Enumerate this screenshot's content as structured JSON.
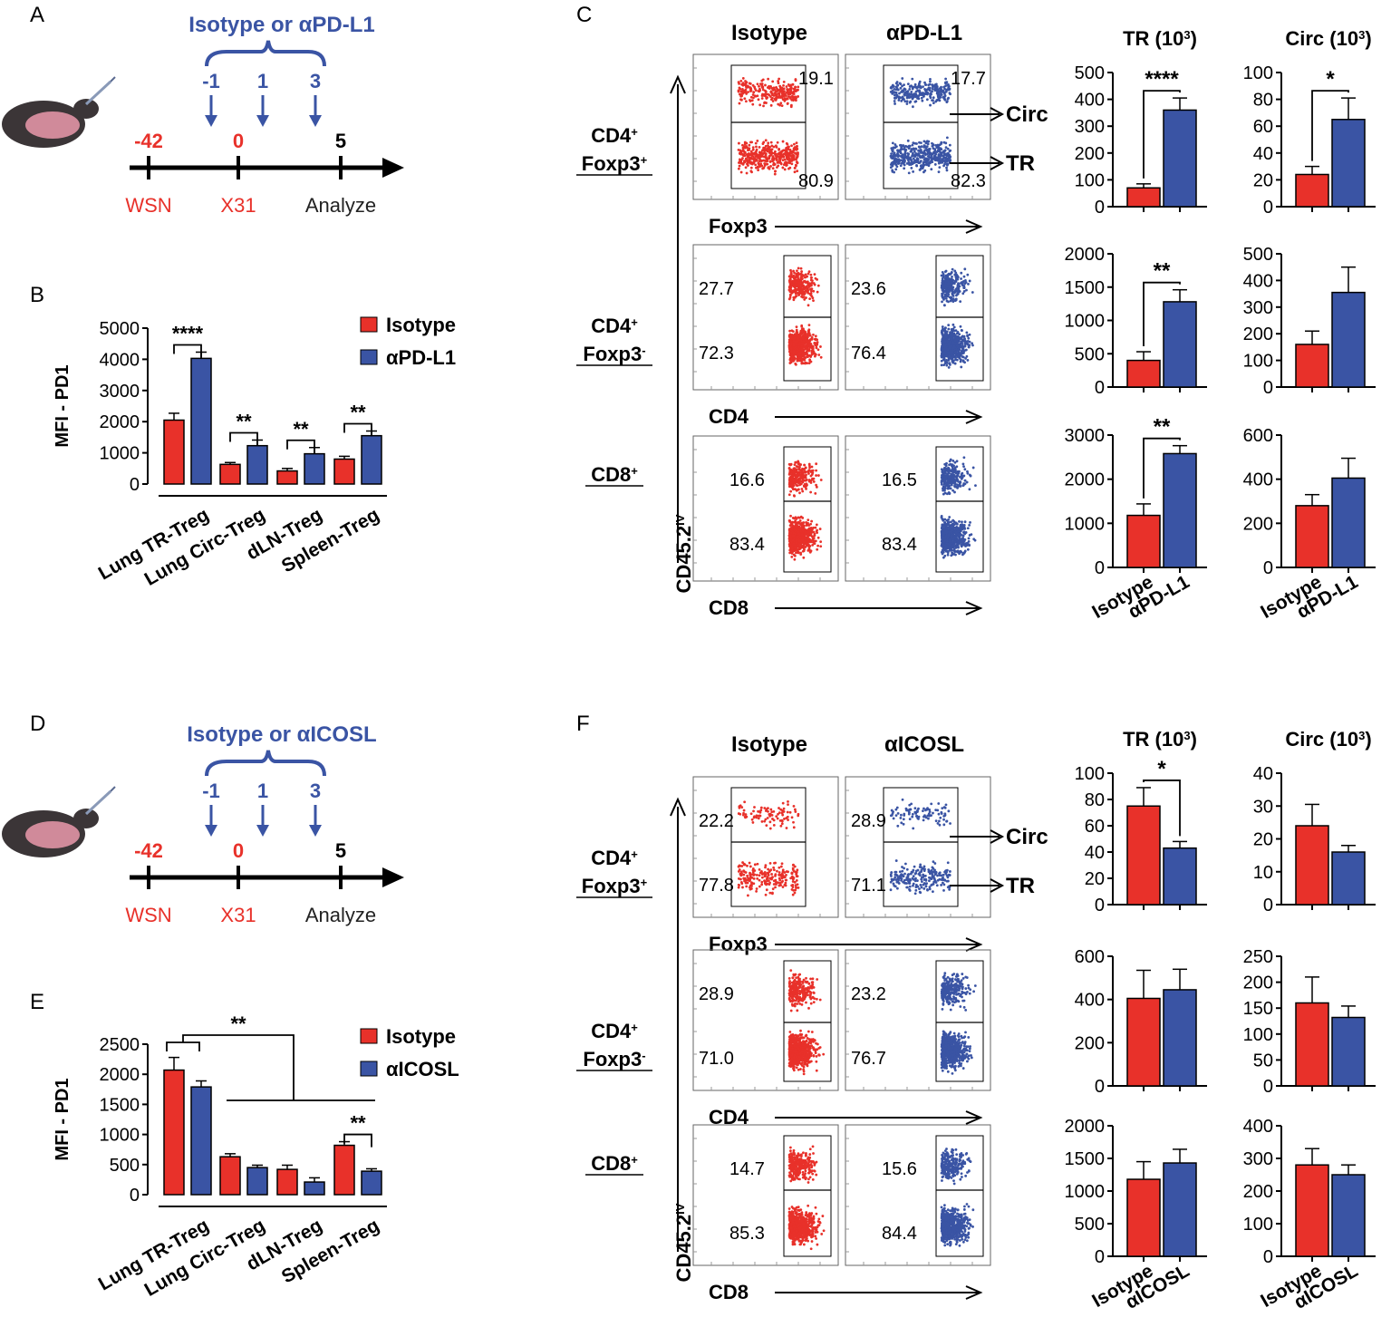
{
  "colors": {
    "isotype": "#e8312a",
    "treatment": "#3a54a4",
    "red_text": "#e8312a",
    "blue_text": "#3a54a4"
  },
  "panels": {
    "A": "A",
    "B": "B",
    "C": "C",
    "D": "D",
    "E": "E",
    "F": "F"
  },
  "timelines": [
    {
      "id": "A",
      "treatment_label": "Isotype or αPD-L1",
      "inject_days": [
        "-1",
        "1",
        "3"
      ],
      "points": [
        {
          "day": "-42",
          "event": "WSN",
          "red": true
        },
        {
          "day": "0",
          "event": "X31",
          "red": true
        },
        {
          "day": "5",
          "event": "Analyze",
          "red": false
        }
      ]
    },
    {
      "id": "D",
      "treatment_label": "Isotype or αICOSL",
      "inject_days": [
        "-1",
        "1",
        "3"
      ],
      "points": [
        {
          "day": "-42",
          "event": "WSN",
          "red": true
        },
        {
          "day": "0",
          "event": "X31",
          "red": true
        },
        {
          "day": "5",
          "event": "Analyze",
          "red": false
        }
      ]
    }
  ],
  "chart_data": [
    {
      "id": "B",
      "type": "bar",
      "ylabel": "MFI - PD1",
      "ylim": [
        0,
        5000
      ],
      "yticks": [
        0,
        1000,
        2000,
        3000,
        4000,
        5000
      ],
      "categories": [
        "Lung TR-Treg",
        "Lung Circ-Treg",
        "dLN-Treg",
        "Spleen-Treg"
      ],
      "series": [
        {
          "name": "Isotype",
          "values": [
            2050,
            630,
            420,
            800
          ],
          "errors": [
            220,
            60,
            80,
            90
          ]
        },
        {
          "name": "αPD-L1",
          "values": [
            4030,
            1230,
            970,
            1550
          ],
          "errors": [
            200,
            180,
            200,
            150
          ]
        }
      ],
      "significance": [
        "****",
        "**",
        "**",
        "**"
      ],
      "group_bracket": null
    },
    {
      "id": "E",
      "type": "bar",
      "ylabel": "MFI - PD1",
      "ylim": [
        0,
        2500
      ],
      "yticks": [
        0,
        500,
        1000,
        1500,
        2000,
        2500
      ],
      "categories": [
        "Lung TR-Treg",
        "Lung Circ-Treg",
        "dLN-Treg",
        "Spleen-Treg"
      ],
      "series": [
        {
          "name": "Isotype",
          "values": [
            2070,
            630,
            420,
            820
          ],
          "errors": [
            210,
            50,
            70,
            60
          ]
        },
        {
          "name": "αICOSL",
          "values": [
            1790,
            450,
            210,
            390
          ],
          "errors": [
            100,
            40,
            70,
            40
          ]
        }
      ],
      "significance": [
        "",
        "",
        "",
        "**"
      ],
      "group_bracket": "**"
    },
    {
      "id": "C-TR-1",
      "type": "bar",
      "title": "TR (10",
      "title_sup": "3",
      "title_end": ")",
      "ylim": [
        0,
        500
      ],
      "yticks": [
        0,
        100,
        200,
        300,
        400,
        500
      ],
      "categories": [
        "Isotype",
        "αPD-L1"
      ],
      "values": [
        70,
        360
      ],
      "errors": [
        15,
        45
      ],
      "sig": "****",
      "show_x": false
    },
    {
      "id": "C-Circ-1",
      "type": "bar",
      "title": "Circ (10",
      "title_sup": "3",
      "title_end": ")",
      "ylim": [
        0,
        100
      ],
      "yticks": [
        0,
        20,
        40,
        60,
        80,
        100
      ],
      "categories": [
        "Isotype",
        "αPD-L1"
      ],
      "values": [
        24,
        65
      ],
      "errors": [
        6,
        16
      ],
      "sig": "*",
      "show_x": false
    },
    {
      "id": "C-TR-2",
      "type": "bar",
      "ylim": [
        0,
        2000
      ],
      "yticks": [
        0,
        500,
        1000,
        1500,
        2000
      ],
      "categories": [
        "Isotype",
        "αPD-L1"
      ],
      "values": [
        400,
        1280
      ],
      "errors": [
        130,
        180
      ],
      "sig": "**",
      "show_x": false
    },
    {
      "id": "C-Circ-2",
      "type": "bar",
      "ylim": [
        0,
        500
      ],
      "yticks": [
        0,
        100,
        200,
        300,
        400,
        500
      ],
      "categories": [
        "Isotype",
        "αPD-L1"
      ],
      "values": [
        160,
        355
      ],
      "errors": [
        50,
        95
      ],
      "sig": "",
      "show_x": false
    },
    {
      "id": "C-TR-3",
      "type": "bar",
      "ylim": [
        0,
        3000
      ],
      "yticks": [
        0,
        1000,
        2000,
        3000
      ],
      "categories": [
        "Isotype",
        "αPD-L1"
      ],
      "values": [
        1180,
        2580
      ],
      "errors": [
        260,
        180
      ],
      "sig": "**",
      "show_x": true
    },
    {
      "id": "C-Circ-3",
      "type": "bar",
      "ylim": [
        0,
        600
      ],
      "yticks": [
        0,
        200,
        400,
        600
      ],
      "categories": [
        "Isotype",
        "αPD-L1"
      ],
      "values": [
        280,
        405
      ],
      "errors": [
        50,
        90
      ],
      "sig": "",
      "show_x": true
    },
    {
      "id": "F-TR-1",
      "type": "bar",
      "title": "TR (10",
      "title_sup": "3",
      "title_end": ")",
      "ylim": [
        0,
        100
      ],
      "yticks": [
        0,
        20,
        40,
        60,
        80,
        100
      ],
      "categories": [
        "Isotype",
        "αICOSL"
      ],
      "values": [
        75,
        43
      ],
      "errors": [
        14,
        5
      ],
      "sig": "*",
      "show_x": false
    },
    {
      "id": "F-Circ-1",
      "type": "bar",
      "title": "Circ (10",
      "title_sup": "3",
      "title_end": ")",
      "ylim": [
        0,
        40
      ],
      "yticks": [
        0,
        10,
        20,
        30,
        40
      ],
      "categories": [
        "Isotype",
        "αICOSL"
      ],
      "values": [
        24,
        16
      ],
      "errors": [
        6.5,
        2
      ],
      "sig": "",
      "show_x": false
    },
    {
      "id": "F-TR-2",
      "type": "bar",
      "ylim": [
        0,
        600
      ],
      "yticks": [
        0,
        200,
        400,
        600
      ],
      "categories": [
        "Isotype",
        "αICOSL"
      ],
      "values": [
        405,
        445
      ],
      "errors": [
        130,
        95
      ],
      "sig": "",
      "show_x": false
    },
    {
      "id": "F-Circ-2",
      "type": "bar",
      "ylim": [
        0,
        250
      ],
      "yticks": [
        0,
        50,
        100,
        150,
        200,
        250
      ],
      "categories": [
        "Isotype",
        "αICOSL"
      ],
      "values": [
        160,
        132
      ],
      "errors": [
        50,
        22
      ],
      "sig": "",
      "show_x": false
    },
    {
      "id": "F-TR-3",
      "type": "bar",
      "ylim": [
        0,
        2000
      ],
      "yticks": [
        0,
        500,
        1000,
        1500,
        2000
      ],
      "categories": [
        "Isotype",
        "αICOSL"
      ],
      "values": [
        1180,
        1430
      ],
      "errors": [
        270,
        210
      ],
      "sig": "",
      "show_x": true
    },
    {
      "id": "F-Circ-3",
      "type": "bar",
      "ylim": [
        0,
        400
      ],
      "yticks": [
        0,
        100,
        200,
        300,
        400
      ],
      "categories": [
        "Isotype",
        "αICOSL"
      ],
      "values": [
        280,
        250
      ],
      "errors": [
        50,
        30
      ],
      "sig": "",
      "show_x": true
    }
  ],
  "flow_panels": [
    {
      "id": "C",
      "headers": [
        "Isotype",
        "αPD-L1"
      ],
      "y_axis": "CD45.2",
      "y_axis_sup": "IV",
      "gate_labels": [
        "Circ",
        "TR"
      ],
      "rows": [
        {
          "label": "CD4",
          "label_sup": "+",
          "label2": "Foxp3",
          "label2_sup": "+",
          "x_axis": "Foxp3",
          "iso": [
            "19.1",
            "80.9"
          ],
          "trt": [
            "17.7",
            "82.3"
          ]
        },
        {
          "label": "CD4",
          "label_sup": "+",
          "label2": "Foxp3",
          "label2_sup": "-",
          "x_axis": "CD4",
          "iso": [
            "27.7",
            "72.3"
          ],
          "trt": [
            "23.6",
            "76.4"
          ]
        },
        {
          "label": "CD8",
          "label_sup": "+",
          "label2": "",
          "label2_sup": "",
          "x_axis": "CD8",
          "iso": [
            "16.6",
            "83.4"
          ],
          "trt": [
            "16.5",
            "83.4"
          ]
        }
      ]
    },
    {
      "id": "F",
      "headers": [
        "Isotype",
        "αICOSL"
      ],
      "y_axis": "CD45.2",
      "y_axis_sup": "IV",
      "gate_labels": [
        "Circ",
        "TR"
      ],
      "rows": [
        {
          "label": "CD4",
          "label_sup": "+",
          "label2": "Foxp3",
          "label2_sup": "+",
          "x_axis": "Foxp3",
          "iso": [
            "22.2",
            "77.8"
          ],
          "trt": [
            "28.9",
            "71.1"
          ]
        },
        {
          "label": "CD4",
          "label_sup": "+",
          "label2": "Foxp3",
          "label2_sup": "-",
          "x_axis": "CD4",
          "iso": [
            "28.9",
            "71.0"
          ],
          "trt": [
            "23.2",
            "76.7"
          ]
        },
        {
          "label": "CD8",
          "label_sup": "+",
          "label2": "",
          "label2_sup": "",
          "x_axis": "CD8",
          "iso": [
            "14.7",
            "85.3"
          ],
          "trt": [
            "15.6",
            "84.4"
          ]
        }
      ]
    }
  ]
}
